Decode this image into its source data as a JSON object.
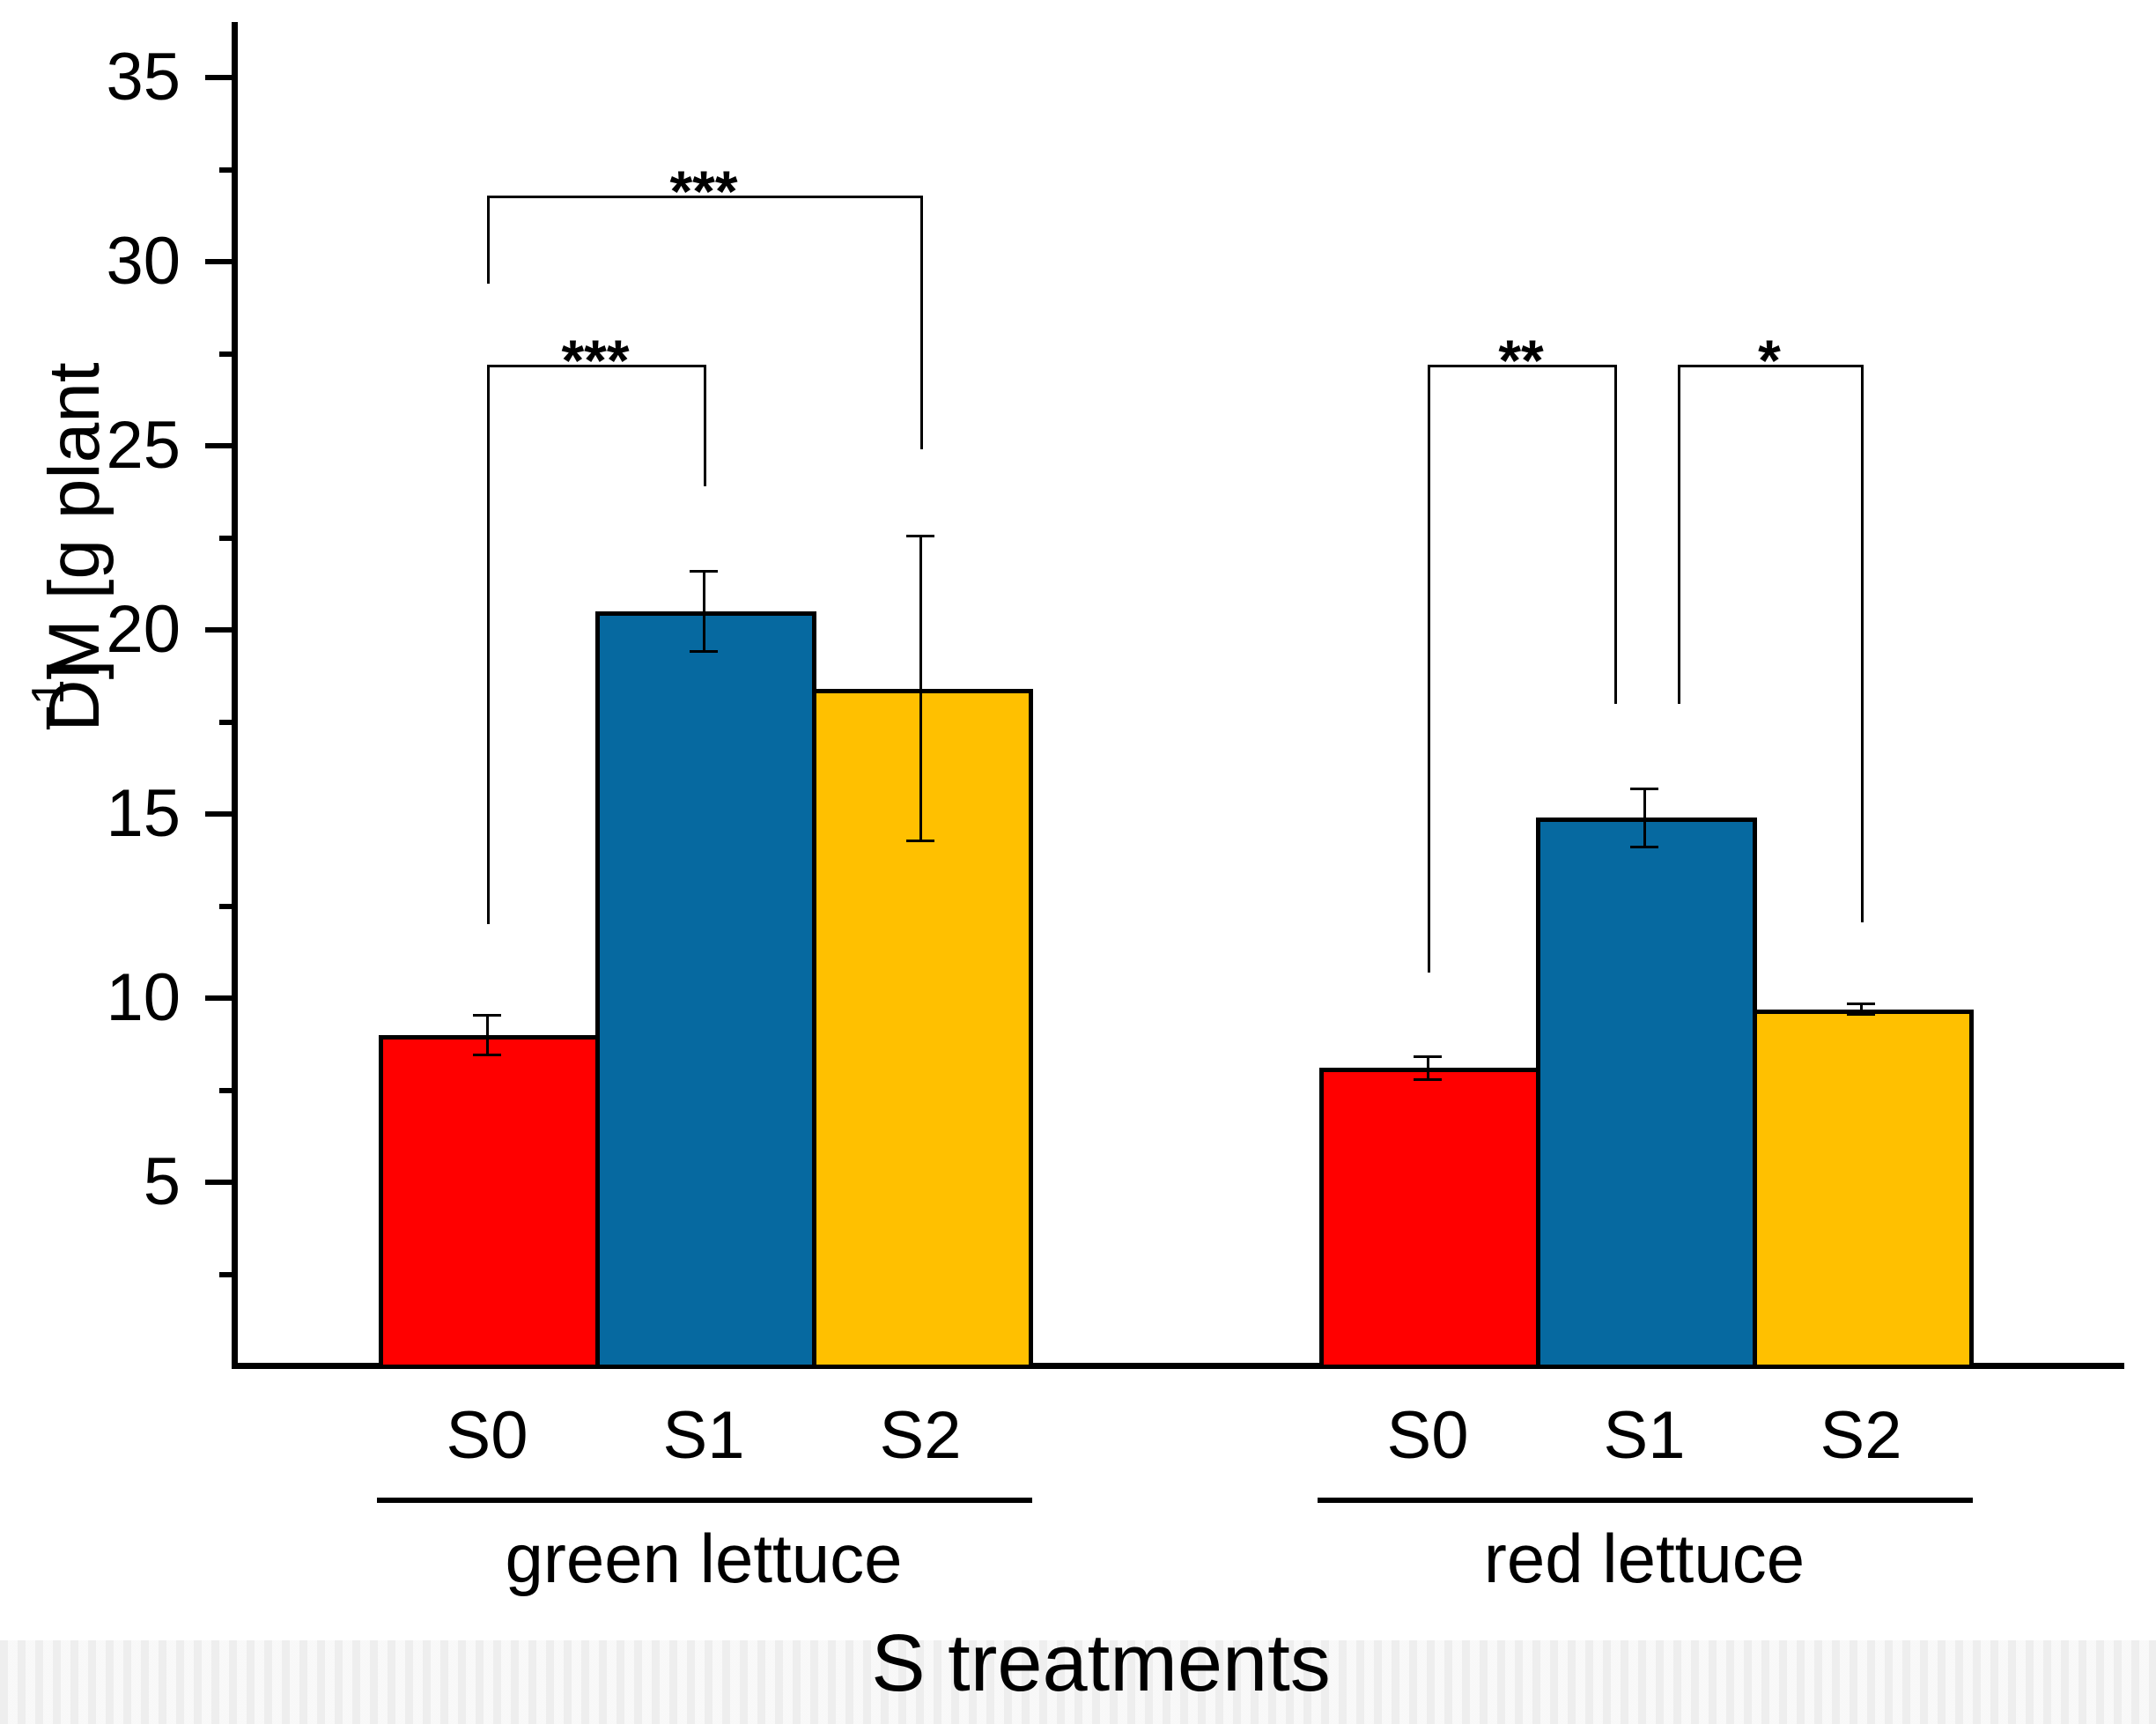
{
  "figure": {
    "ylabel_pieces": {
      "main": "DM [g plant",
      "sup": "−1",
      "end": "]"
    }
  },
  "chart_data": {
    "type": "bar",
    "title": "",
    "xlabel": "S treatments",
    "ylabel": "DM [g plant^-1]",
    "ylim": [
      0,
      36.5
    ],
    "yticks_major": [
      5,
      10,
      15,
      20,
      25,
      30,
      35
    ],
    "yticks_minor": [
      2.5,
      7.5,
      12.5,
      17.5,
      22.5,
      27.5,
      32.5
    ],
    "grid": false,
    "legend": "none",
    "categories": [
      "S0",
      "S1",
      "S2"
    ],
    "bar_colors": {
      "S0": "#FF0000",
      "S1": "#0669A0",
      "S2": "#FFC000"
    },
    "groups": [
      {
        "name": "green lettuce",
        "bars": [
          {
            "treatment": "S0",
            "value": 9.0,
            "error": 0.55,
            "color": "#FF0000"
          },
          {
            "treatment": "S1",
            "value": 20.5,
            "error": 1.1,
            "color": "#0669A0"
          },
          {
            "treatment": "S2",
            "value": 18.4,
            "error": 4.15,
            "color": "#FFC000"
          }
        ]
      },
      {
        "name": "red lettuce",
        "bars": [
          {
            "treatment": "S0",
            "value": 8.1,
            "error": 0.33,
            "color": "#FF0000"
          },
          {
            "treatment": "S1",
            "value": 14.9,
            "error": 0.8,
            "color": "#0669A0"
          },
          {
            "treatment": "S2",
            "value": 9.7,
            "error": 0.15,
            "color": "#FFC000"
          }
        ]
      }
    ],
    "significance": [
      {
        "group": 0,
        "a": 0,
        "b": 1,
        "label": "***",
        "bar_y": 27.2,
        "a_end": 12.0,
        "b_end": 23.9,
        "a_off": 0,
        "b_off": 0
      },
      {
        "group": 0,
        "a": 0,
        "b": 2,
        "label": "***",
        "bar_y": 31.8,
        "a_end": 29.4,
        "b_end": 24.9,
        "a_off": 0,
        "b_off": 0
      },
      {
        "group": 1,
        "a": 0,
        "b": 1,
        "label": "**",
        "bar_y": 27.2,
        "a_end": 10.7,
        "b_end": 18.0,
        "a_off": 0,
        "b_off": -34
      },
      {
        "group": 1,
        "a": 1,
        "b": 2,
        "label": "*",
        "bar_y": 27.2,
        "a_end": 18.0,
        "b_end": 12.05,
        "a_off": 38,
        "b_off": 0
      }
    ]
  }
}
